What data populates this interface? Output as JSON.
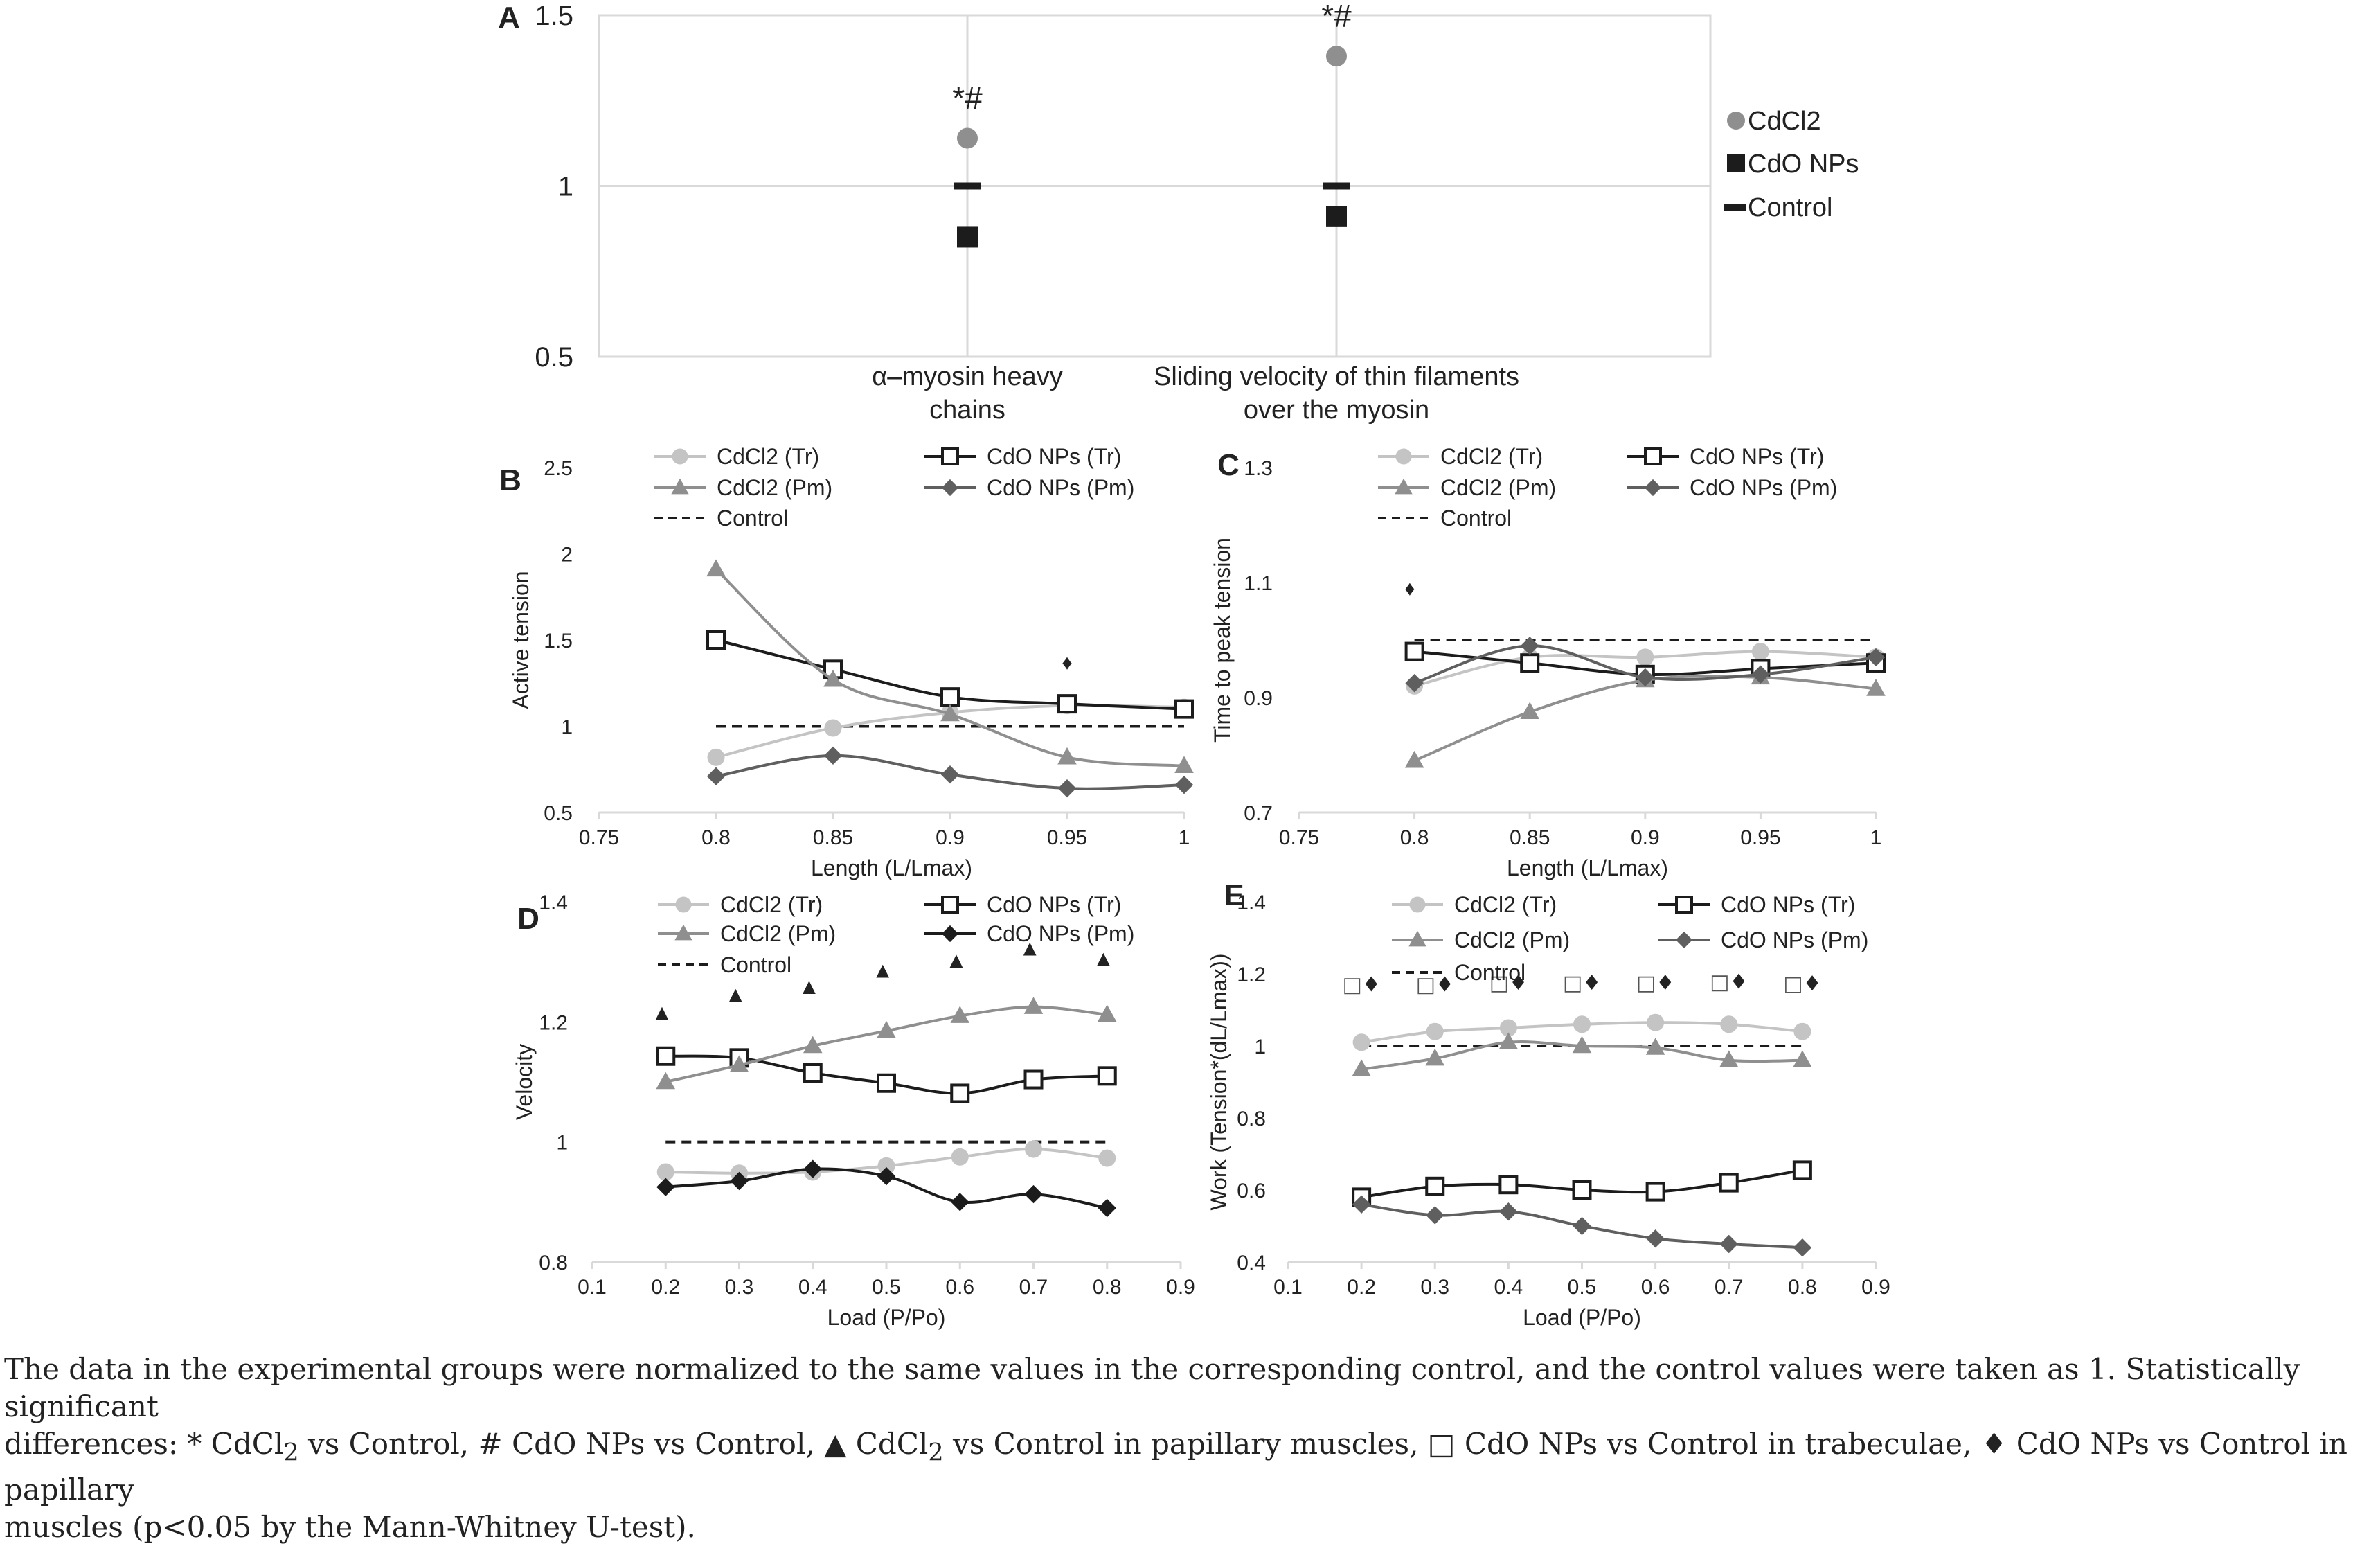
{
  "panels": {
    "A": {
      "letter": "A"
    },
    "B": {
      "letter": "B"
    },
    "C": {
      "letter": "C"
    },
    "D": {
      "letter": "D"
    },
    "E": {
      "letter": "E"
    }
  },
  "colors": {
    "light": "#c4c4c4",
    "mid": "#8f8f8f",
    "dark": "#5f5f5f",
    "black": "#1c1c1c",
    "grid": "#d9d9d9"
  },
  "chart_data": [
    {
      "id": "A",
      "type": "scatter",
      "title": "",
      "xlabel": "",
      "ylabel": "",
      "categories": [
        "α–myosin heavy chains",
        "Sliding velocity of thin filaments over the myosin"
      ],
      "category_lines": [
        [
          "α–myosin heavy",
          "chains"
        ],
        [
          "Sliding velocity of thin filaments",
          "over the myosin"
        ]
      ],
      "ylim": [
        0.5,
        1.5
      ],
      "yticks": [
        "0.5",
        "1",
        "1.5"
      ],
      "grid": true,
      "legend": "right",
      "series": [
        {
          "name": "CdCl2",
          "marker": "circle",
          "values": [
            1.14,
            1.38
          ]
        },
        {
          "name": "CdO NPs",
          "marker": "square",
          "values": [
            0.85,
            0.91
          ]
        },
        {
          "name": "Control",
          "marker": "dash",
          "values": [
            1.0,
            1.0
          ]
        }
      ],
      "annotations": [
        "*#",
        "*#"
      ]
    },
    {
      "id": "B",
      "type": "line",
      "xlabel": "Length (L/Lmax)",
      "ylabel": "Active tension",
      "xlim": [
        0.75,
        1.0
      ],
      "ylim": [
        0.5,
        2.5
      ],
      "xticks": [
        "0.75",
        "0.8",
        "0.85",
        "0.9",
        "0.95",
        "1"
      ],
      "yticks": [
        "0.5",
        "1",
        "1.5",
        "2",
        "2.5"
      ],
      "x": [
        0.8,
        0.85,
        0.9,
        0.95,
        1.0
      ],
      "legend": "top",
      "series": [
        {
          "name": "CdCl2 (Tr)",
          "style": "light-circle",
          "values": [
            0.82,
            0.99,
            1.08,
            1.12,
            1.11
          ]
        },
        {
          "name": "CdO NPs (Tr)",
          "style": "open-square",
          "values": [
            1.5,
            1.33,
            1.17,
            1.13,
            1.1
          ]
        },
        {
          "name": "CdCl2 (Pm)",
          "style": "mid-triangle",
          "values": [
            1.91,
            1.27,
            1.07,
            0.82,
            0.77
          ]
        },
        {
          "name": "CdO NPs (Pm)",
          "style": "dark-diamond",
          "values": [
            0.71,
            0.83,
            0.72,
            0.64,
            0.66
          ]
        },
        {
          "name": "Control",
          "style": "dashed",
          "values": [
            1,
            1,
            1,
            1,
            1
          ]
        }
      ],
      "markers": [
        {
          "x": 0.95,
          "y": 1.37,
          "symbol": "♦"
        }
      ]
    },
    {
      "id": "C",
      "type": "line",
      "xlabel": "Length (L/Lmax)",
      "ylabel": "Time to peak tension",
      "xlim": [
        0.75,
        1.0
      ],
      "ylim": [
        0.7,
        1.3
      ],
      "xticks": [
        "0.75",
        "0.8",
        "0.85",
        "0.9",
        "0.95",
        "1"
      ],
      "yticks": [
        "0.7",
        "0.9",
        "1.1",
        "1.3"
      ],
      "x": [
        0.8,
        0.85,
        0.9,
        0.95,
        1.0
      ],
      "legend": "top",
      "series": [
        {
          "name": "CdCl2 (Tr)",
          "style": "light-circle",
          "values": [
            0.92,
            0.97,
            0.97,
            0.98,
            0.97
          ]
        },
        {
          "name": "CdO NPs (Tr)",
          "style": "open-square",
          "values": [
            0.98,
            0.96,
            0.94,
            0.95,
            0.96
          ]
        },
        {
          "name": "CdCl2 (Pm)",
          "style": "mid-triangle",
          "values": [
            0.79,
            0.875,
            0.93,
            0.935,
            0.915
          ]
        },
        {
          "name": "CdO NPs (Pm)",
          "style": "dark-diamond",
          "values": [
            0.925,
            0.99,
            0.935,
            0.94,
            0.97
          ]
        },
        {
          "name": "Control",
          "style": "dashed",
          "values": [
            1,
            1,
            1,
            1,
            1
          ]
        }
      ],
      "markers": [
        {
          "x": 0.798,
          "y": 1.09,
          "symbol": "♦"
        }
      ]
    },
    {
      "id": "D",
      "type": "line",
      "xlabel": "Load (P/Po)",
      "ylabel": "Velocity",
      "xlim": [
        0.1,
        0.9
      ],
      "ylim": [
        0.8,
        1.4
      ],
      "xticks": [
        "0.1",
        "0.2",
        "0.3",
        "0.4",
        "0.5",
        "0.6",
        "0.7",
        "0.8",
        "0.9"
      ],
      "yticks": [
        "0.8",
        "1",
        "1.2",
        "1.4"
      ],
      "x": [
        0.2,
        0.3,
        0.4,
        0.5,
        0.6,
        0.7,
        0.8
      ],
      "legend": "top",
      "series": [
        {
          "name": "CdCl2 (Tr)",
          "style": "light-circle",
          "values": [
            0.95,
            0.948,
            0.95,
            0.96,
            0.975,
            0.988,
            0.973
          ]
        },
        {
          "name": "CdO NPs (Tr)",
          "style": "open-square",
          "values": [
            1.143,
            1.14,
            1.115,
            1.098,
            1.081,
            1.104,
            1.11
          ]
        },
        {
          "name": "CdCl2 (Pm)",
          "style": "mid-triangle",
          "values": [
            1.1,
            1.128,
            1.16,
            1.185,
            1.21,
            1.225,
            1.212
          ]
        },
        {
          "name": "CdO NPs (Pm)",
          "style": "black-diamond",
          "values": [
            0.925,
            0.935,
            0.955,
            0.943,
            0.9,
            0.913,
            0.89
          ]
        },
        {
          "name": "Control",
          "style": "dashed",
          "values": [
            1,
            1,
            1,
            1,
            1,
            1,
            1
          ]
        }
      ],
      "markers": [
        {
          "x": 0.195,
          "y": 1.215,
          "symbol": "▲"
        },
        {
          "x": 0.295,
          "y": 1.245,
          "symbol": "▲"
        },
        {
          "x": 0.395,
          "y": 1.258,
          "symbol": "▲"
        },
        {
          "x": 0.495,
          "y": 1.285,
          "symbol": "▲"
        },
        {
          "x": 0.595,
          "y": 1.302,
          "symbol": "▲"
        },
        {
          "x": 0.695,
          "y": 1.322,
          "symbol": "▲"
        },
        {
          "x": 0.795,
          "y": 1.305,
          "symbol": "▲"
        }
      ]
    },
    {
      "id": "E",
      "type": "line",
      "xlabel": "Load (P/Po)",
      "ylabel": "Work (Tension*(dL/Lmax))",
      "xlim": [
        0.1,
        0.9
      ],
      "ylim": [
        0.4,
        1.4
      ],
      "xticks": [
        "0.1",
        "0.2",
        "0.3",
        "0.4",
        "0.5",
        "0.6",
        "0.7",
        "0.8",
        "0.9"
      ],
      "yticks": [
        "0.4",
        "0.6",
        "0.8",
        "1",
        "1.2",
        "1.4"
      ],
      "x": [
        0.2,
        0.3,
        0.4,
        0.5,
        0.6,
        0.7,
        0.8
      ],
      "legend": "top",
      "series": [
        {
          "name": "CdCl2 (Tr)",
          "style": "light-circle",
          "values": [
            1.01,
            1.04,
            1.05,
            1.06,
            1.065,
            1.06,
            1.04
          ]
        },
        {
          "name": "CdO NPs (Tr)",
          "style": "open-square",
          "values": [
            0.58,
            0.61,
            0.615,
            0.6,
            0.595,
            0.62,
            0.655
          ]
        },
        {
          "name": "CdCl2 (Pm)",
          "style": "mid-triangle",
          "values": [
            0.935,
            0.965,
            1.01,
            1.0,
            0.995,
            0.96,
            0.96
          ]
        },
        {
          "name": "CdO NPs (Pm)",
          "style": "dark-diamond",
          "values": [
            0.56,
            0.53,
            0.54,
            0.5,
            0.465,
            0.45,
            0.44
          ]
        },
        {
          "name": "Control",
          "style": "dashed",
          "values": [
            1,
            1,
            1,
            1,
            1,
            1,
            1
          ]
        }
      ],
      "markers": [
        {
          "x": 0.2,
          "y": 1.17,
          "symbol": "□♦"
        },
        {
          "x": 0.3,
          "y": 1.17,
          "symbol": "□♦"
        },
        {
          "x": 0.4,
          "y": 1.175,
          "symbol": "□♦"
        },
        {
          "x": 0.5,
          "y": 1.175,
          "symbol": "□♦"
        },
        {
          "x": 0.6,
          "y": 1.175,
          "symbol": "□♦"
        },
        {
          "x": 0.7,
          "y": 1.178,
          "symbol": "□♦"
        },
        {
          "x": 0.8,
          "y": 1.173,
          "symbol": "□♦"
        }
      ]
    }
  ],
  "caption": {
    "line1": "The data in the experimental groups were normalized to the same values in the corresponding control, and the control values were taken as 1. Statistically significant",
    "p1": "differences: *  CdCl",
    "sub1": "2",
    "p2": " vs Control, #  CdO NPs vs Control, ",
    "tri": "▲",
    "p3": "  CdCl",
    "sub2": "2",
    "p4": " vs Control in papillary muscles, ",
    "sq": "□",
    "p5": "  CdO NPs vs Control in trabeculae, ",
    "dia": "♦",
    "p6": "  CdO NPs vs Control in papillary",
    "line3": "muscles (p<0.05 by the Mann-Whitney U-test)."
  }
}
